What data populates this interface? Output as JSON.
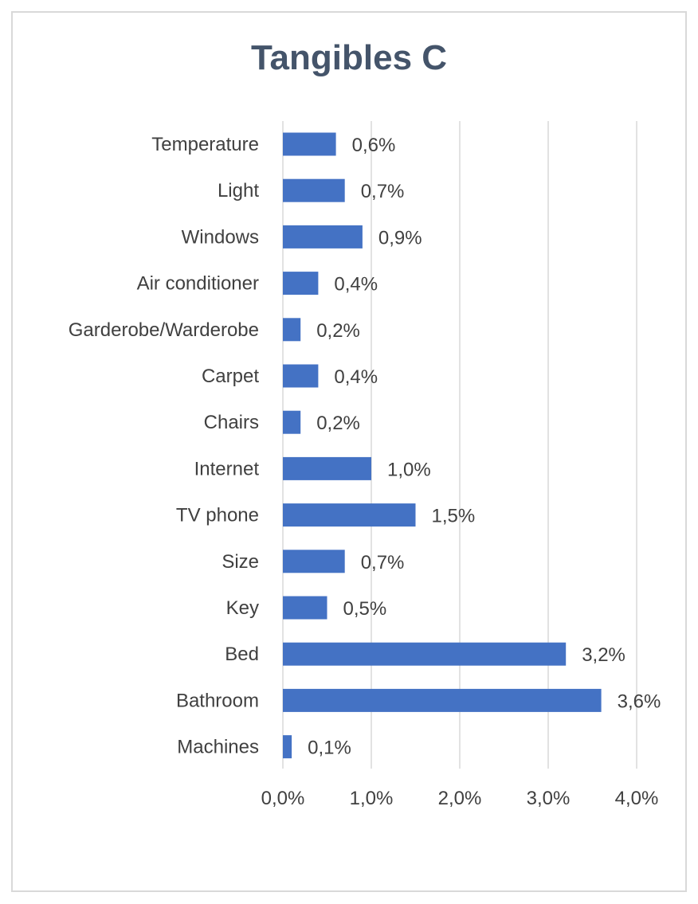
{
  "chart_data": {
    "type": "bar",
    "orientation": "horizontal",
    "title": "Tangibles C",
    "categories": [
      "Temperature",
      "Light",
      "Windows",
      "Air conditioner",
      "Garderobe/Warderobe",
      "Carpet",
      "Chairs",
      "Internet",
      "TV phone",
      "Size",
      "Key",
      "Bed",
      "Bathroom",
      "Machines"
    ],
    "values": [
      0.6,
      0.7,
      0.9,
      0.4,
      0.2,
      0.4,
      0.2,
      1.0,
      1.5,
      0.7,
      0.5,
      3.2,
      3.6,
      0.1
    ],
    "data_labels": [
      "0,6%",
      "0,7%",
      "0,9%",
      "0,4%",
      "0,2%",
      "0,4%",
      "0,2%",
      "1,0%",
      "1,5%",
      "0,7%",
      "0,5%",
      "3,2%",
      "3,6%",
      "0,1%"
    ],
    "x_ticks": [
      0,
      1,
      2,
      3,
      4
    ],
    "x_tick_labels": [
      "0,0%",
      "1,0%",
      "2,0%",
      "3,0%",
      "4,0%"
    ],
    "xlim": [
      0,
      4
    ],
    "xlabel": "",
    "ylabel": "",
    "grid": "vertical",
    "legend": "none",
    "bar_color": "#4472c4",
    "title_color": "#44546a",
    "gridline_color": "#d9d9d9"
  }
}
